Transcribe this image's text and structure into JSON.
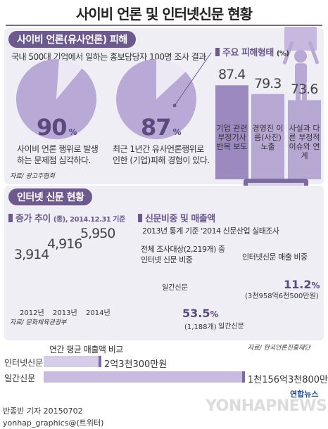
{
  "title": "사이비 언론 및 인터넷신문 현황",
  "section1": {
    "heading": "사이비 언론(유사언론) 피해",
    "survey": "국내 500대 기업에서 일하는 홍보담당자 100명 조사 결과",
    "pie1": {
      "value": 90,
      "unit": "%",
      "caption1": "사이비 언론 행위로 발생",
      "caption2": "하는 문제점 심각하다."
    },
    "pie2": {
      "value": 87,
      "unit": "%",
      "caption1": "최근 1년간 유사언론행위로",
      "caption2": "인한 (기업)피해 경험이 있다."
    },
    "source": "자료/ 광고주협회",
    "types_heading": "주요 피해형태",
    "types_unit": "(%)"
  },
  "section2": {
    "heading": "인터넷 신문 현황",
    "growth_heading": "증가 추이",
    "growth_unit": "(종), 2014.12.31 기준",
    "growth_source": "자료/ 문화체육관광부",
    "share_heading": "신문비중 및 매출액",
    "share_basis": "2013년 통계 기준 '2014 신문산업 실태조사",
    "pieA": {
      "caption1": "전체 조사대상(2,219개) 중",
      "caption2": "인터넷 신문 비중",
      "other_label": "일간신문",
      "value": "53.5",
      "unit": "%",
      "count": "(1,188개)"
    },
    "pieB": {
      "caption": "인터넷신문 매출 비중",
      "value": "11.2",
      "unit": "%",
      "amount": "(3천958억6천500만원)",
      "other_label": "일간신문"
    },
    "share_source": "자료/ 한국언론진흥재단"
  },
  "revenue": {
    "heading": "연간 평균 매출액 비교",
    "rows": [
      {
        "label": "인터넷신문",
        "value": "2억3천300만원"
      },
      {
        "label": "일간신문",
        "value": "1천156억3천800만원"
      }
    ]
  },
  "footer": {
    "reporter": "반종빈 기자 20150702",
    "twitter": "yonhap_graphics@(트위터)",
    "logo": "연합뉴스",
    "watermark": "YONHAPNEWS"
  },
  "colors": {
    "accent": "#6c5a8e",
    "pie_main": "#b9a9d6",
    "pie_light": "#ece8f4",
    "bar": "#a493c6",
    "bg_panel": "#efeef4"
  },
  "chart_data": [
    {
      "type": "pie",
      "title": "사이비 언론 행위로 발생하는 문제점 심각하다.",
      "values": [
        90,
        10
      ],
      "unit": "%"
    },
    {
      "type": "pie",
      "title": "최근 1년간 유사언론행위로 인한 (기업)피해 경험이 있다.",
      "values": [
        87,
        13
      ],
      "unit": "%"
    },
    {
      "type": "bar",
      "title": "주요 피해형태",
      "categories": [
        "기업 관련 부정기사 반복 보도",
        "경영진 이름(사진) 노출",
        "사실과 다른 부정적 이슈와 연계"
      ],
      "values": [
        87.4,
        79.3,
        73.6
      ],
      "unit": "%"
    },
    {
      "type": "bar",
      "title": "증가 추이",
      "categories": [
        "2012년",
        "2013년",
        "2014년"
      ],
      "values": [
        3914,
        4916,
        5950
      ],
      "value_labels": [
        "3,914",
        "4,916",
        "5,950"
      ],
      "unit": "종"
    },
    {
      "type": "pie",
      "title": "인터넷 신문 비중",
      "categories": [
        "인터넷신문",
        "일간신문"
      ],
      "values": [
        53.5,
        46.5
      ],
      "unit": "%"
    },
    {
      "type": "pie",
      "title": "인터넷신문 매출 비중",
      "categories": [
        "인터넷신문",
        "일간신문"
      ],
      "values": [
        11.2,
        88.8
      ],
      "unit": "%"
    },
    {
      "type": "bar",
      "title": "연간 평균 매출액 비교",
      "categories": [
        "인터넷신문",
        "일간신문"
      ],
      "values": [
        2.33,
        1156.38
      ],
      "unit": "억원"
    }
  ]
}
